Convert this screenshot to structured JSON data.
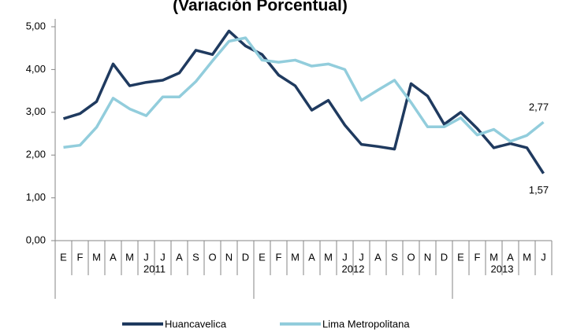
{
  "chart_data": {
    "type": "line",
    "title": "(Variación Porcentual)",
    "categories": [
      "E",
      "F",
      "M",
      "A",
      "M",
      "J",
      "J",
      "A",
      "S",
      "O",
      "N",
      "D",
      "E",
      "F",
      "M",
      "A",
      "M",
      "J",
      "J",
      "A",
      "S",
      "O",
      "N",
      "D",
      "E",
      "F",
      "M",
      "A",
      "M",
      "J"
    ],
    "years": [
      "2011",
      "2012",
      "2013"
    ],
    "series": [
      {
        "name": "Huancavelica",
        "color": "#1f3a5f",
        "values": [
          2.85,
          2.97,
          3.25,
          4.13,
          3.62,
          3.7,
          3.75,
          3.92,
          4.45,
          4.35,
          4.9,
          4.55,
          4.35,
          3.87,
          3.62,
          3.05,
          3.28,
          2.7,
          2.25,
          2.2,
          2.14,
          3.67,
          3.38,
          2.72,
          3.0,
          2.62,
          2.17,
          2.27,
          2.17,
          1.57
        ],
        "value_labels": [
          null,
          null,
          null,
          null,
          null,
          null,
          null,
          null,
          null,
          null,
          null,
          null,
          null,
          null,
          null,
          null,
          null,
          null,
          null,
          null,
          null,
          null,
          null,
          null,
          null,
          null,
          null,
          null,
          null,
          "1,57"
        ]
      },
      {
        "name": "Lima Metropolitana",
        "color": "#92cddc",
        "values": [
          2.18,
          2.23,
          2.65,
          3.33,
          3.08,
          2.92,
          3.36,
          3.36,
          3.72,
          4.2,
          4.66,
          4.74,
          4.22,
          4.17,
          4.22,
          4.08,
          4.13,
          4.0,
          3.28,
          3.52,
          3.75,
          3.23,
          2.66,
          2.66,
          2.87,
          2.47,
          2.6,
          2.32,
          2.46,
          2.77
        ],
        "value_labels": [
          null,
          null,
          null,
          null,
          null,
          null,
          null,
          null,
          null,
          null,
          null,
          null,
          null,
          null,
          null,
          null,
          null,
          null,
          null,
          null,
          null,
          null,
          null,
          null,
          null,
          null,
          null,
          null,
          null,
          "2,77"
        ]
      }
    ],
    "ylim": [
      0,
      5
    ],
    "yticks": [
      {
        "value": 0,
        "label": "0,00"
      },
      {
        "value": 1,
        "label": "1,00"
      },
      {
        "value": 2,
        "label": "2,00"
      },
      {
        "value": 3,
        "label": "3,00"
      },
      {
        "value": 4,
        "label": "4,00"
      },
      {
        "value": 5,
        "label": "5,00"
      }
    ],
    "grid": false,
    "legend": "bottom"
  }
}
